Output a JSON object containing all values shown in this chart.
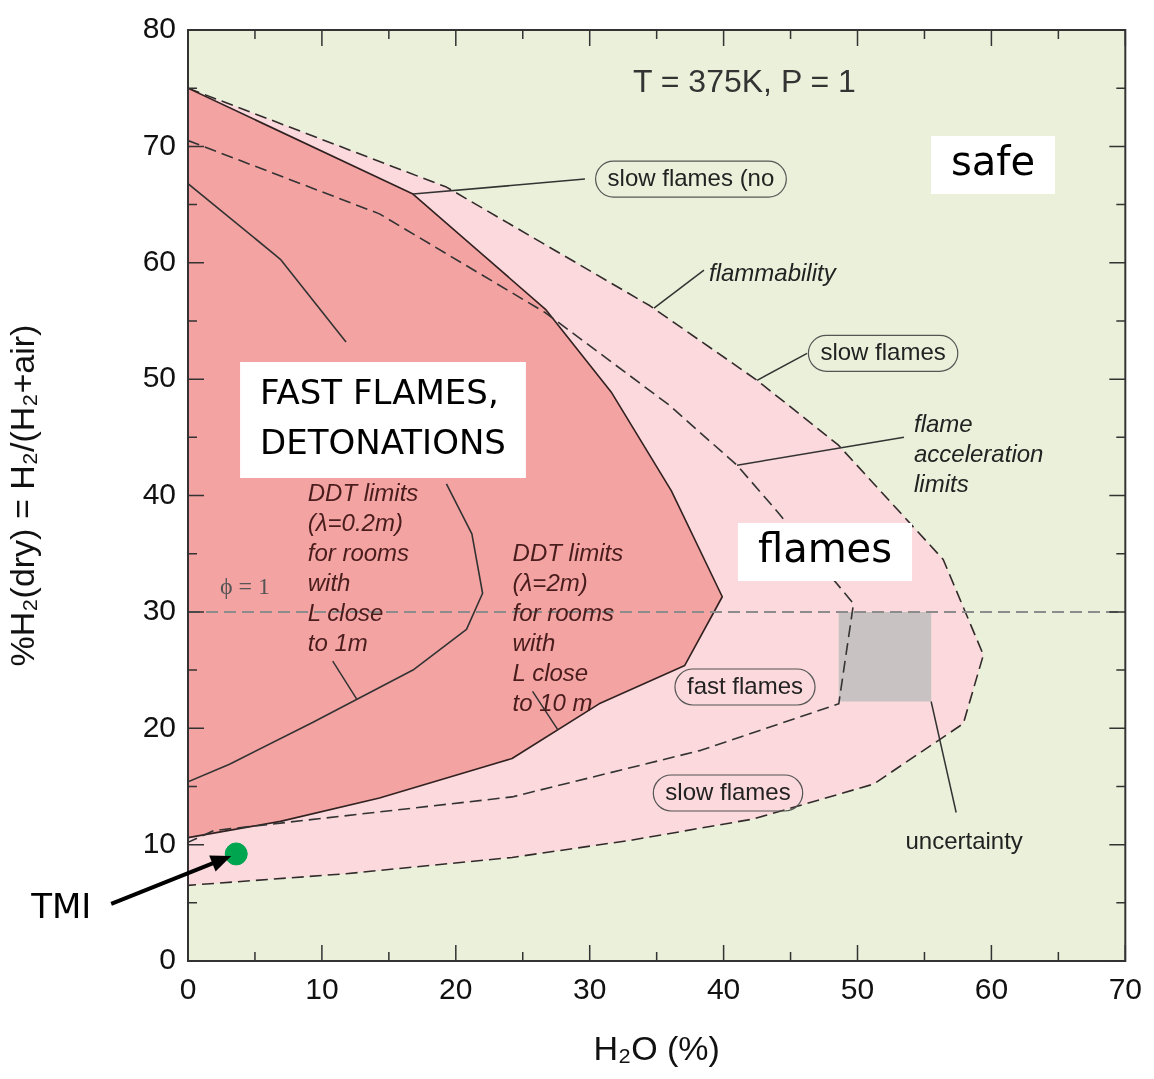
{
  "chart_data": {
    "type": "line",
    "xlabel": "H₂O (%)",
    "ylabel": "%H₂(dry) = H₂/(H₂+air)",
    "xlim": [
      0,
      70
    ],
    "ylim": [
      0,
      80
    ],
    "xticks": [
      0,
      {
        "value": 5,
        "label": null
      },
      10,
      {
        "value": 15,
        "label": null
      },
      20,
      {
        "value": 25,
        "label": null
      },
      30,
      {
        "value": 35,
        "label": null
      },
      40,
      {
        "value": 45,
        "label": null
      },
      50,
      {
        "value": 55,
        "label": null
      },
      60,
      {
        "value": 65,
        "label": null
      },
      70
    ],
    "yticks": [
      0,
      {
        "value": 5,
        "label": null
      },
      10,
      {
        "value": 15,
        "label": null
      },
      20,
      {
        "value": 25,
        "label": null
      },
      30,
      {
        "value": 35,
        "label": null
      },
      40,
      {
        "value": 45,
        "label": null
      },
      50,
      {
        "value": 55,
        "label": null
      },
      60,
      {
        "value": 65,
        "label": null
      },
      70,
      {
        "value": 75,
        "label": null
      },
      80
    ],
    "legend": false,
    "series": [
      {
        "type": "area",
        "color": "#fbd9dc",
        "line_style": "dashed",
        "x": [
          0,
          19.3,
          34.5,
          42.5,
          48.6,
          56.4,
          59.4,
          57.9,
          51.2,
          42.2,
          33.2,
          24.2,
          11.8,
          0
        ],
        "values": [
          75,
          66.5,
          56.3,
          49.9,
          44.3,
          34.5,
          26.3,
          20.4,
          15.2,
          12.2,
          10.4,
          8.9,
          7.5,
          6.5
        ]
      },
      {
        "type": "area",
        "color": "#f4a3a3",
        "line_style": "solid",
        "x": [
          0,
          16.8,
          26.7,
          31.6,
          36.1,
          39.9,
          37.1,
          30.7,
          24.2,
          14.3,
          6.9,
          0
        ],
        "values": [
          75,
          65.9,
          56,
          48.9,
          40.4,
          31.3,
          25.4,
          22.1,
          17.4,
          14,
          12,
          10.6
        ]
      },
      {
        "type": "area",
        "color": "#c9c2c2",
        "x": [
          48.6,
          55.5,
          55.5,
          48.6
        ],
        "values": [
          30,
          30,
          22.3,
          22.3
        ]
      },
      {
        "color": "#333333",
        "line_style": "solid",
        "x": [
          0,
          6.9,
          11.8,
          14.3,
          19.3,
          21.2,
          22,
          20.8,
          16.8,
          9.3,
          3.1,
          0
        ],
        "values": [
          66.8,
          60.3,
          53.2,
          null,
          41,
          36.7,
          31.6,
          28.5,
          25,
          20.5,
          16.9,
          15.4
        ]
      },
      {
        "color": "#333333",
        "line_style": "dashed",
        "x": [
          0,
          14.3,
          26.7,
          35.9,
          41,
          43.8,
          49.7,
          48.6,
          38.3,
          24.2,
          1.9,
          0
        ],
        "values": [
          70.5,
          64.2,
          55.7,
          47.8,
          42.6,
          38.9,
          30.7,
          22.1,
          18.1,
          14.1,
          11.2,
          10.2
        ]
      },
      {
        "type": "scatter",
        "name": "TMI",
        "color": "#00a550",
        "marker": "circle",
        "x": [
          3.6
        ],
        "values": [
          9.2
        ]
      }
    ],
    "ref_lines": [
      {
        "axis": "y",
        "value": 30,
        "color": "#8c8c8c",
        "line_style": "dashed"
      }
    ],
    "annotations": [
      "T = 375K, P = 1",
      "safe",
      {
        "text": "slow flames (no",
        "x": 16.8,
        "y": 65.9
      },
      {
        "text": "flammability",
        "x": 34.8,
        "y": 56.1
      },
      {
        "text": "slow flames",
        "x": 42.5,
        "y": 49.9
      },
      {
        "text": "flame\nacceleration\nlimits",
        "x": 41,
        "y": 42.6
      },
      "FAST FLAMES,\nDETONATIONS",
      {
        "text": "DDT limits\n(λ=0.2m)\nfor rooms\nwith\nL close\nto 1m",
        "x": 12.6,
        "y": 22.5
      },
      {
        "text": "DDT limits\n(λ=2m)\nfor rooms\nwith\nL close\nto 10 m",
        "x": 27.6,
        "y": 19.9
      },
      "flames",
      "fast flames",
      "slow flames",
      {
        "text": "uncertainty",
        "x": 55.5,
        "y": 22.3
      },
      "ϕ = 1"
    ]
  }
}
